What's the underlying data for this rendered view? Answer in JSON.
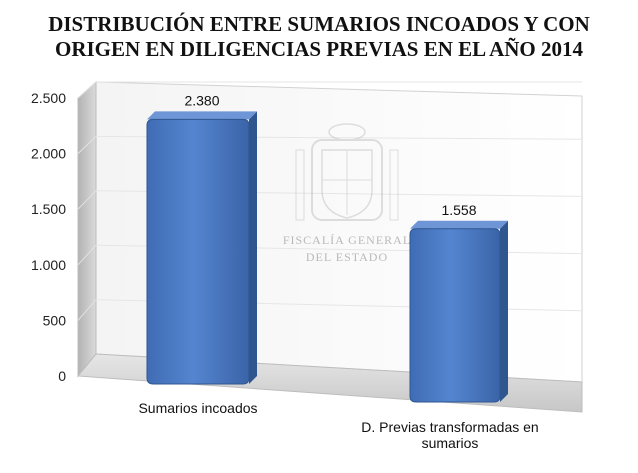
{
  "chart_data": {
    "type": "bar",
    "title_lines": [
      "DISTRIBUCIÓN ENTRE SUMARIOS INCOADOS Y CON",
      "ORIGEN EN DILIGENCIAS PREVIAS EN EL AÑO 2014"
    ],
    "categories": [
      "Sumarios incoados",
      "D. Previas transformadas en sumarios"
    ],
    "category_label_lines": [
      [
        "Sumarios incoados"
      ],
      [
        "D. Previas transformadas en",
        "sumarios"
      ]
    ],
    "values": [
      2380,
      1558
    ],
    "value_labels": [
      "2.380",
      "1.558"
    ],
    "ylim": [
      0,
      2500
    ],
    "y_ticks": [
      0,
      500,
      1000,
      1500,
      2000,
      2500
    ],
    "y_tick_labels": [
      "0",
      "500",
      "1.000",
      "1.500",
      "2.000",
      "2.500"
    ],
    "grid": true,
    "legend": "none",
    "bar_color": "#4a78c0",
    "watermark_lines": [
      "FISCALÍA GENERAL",
      "DEL ESTADO"
    ]
  }
}
